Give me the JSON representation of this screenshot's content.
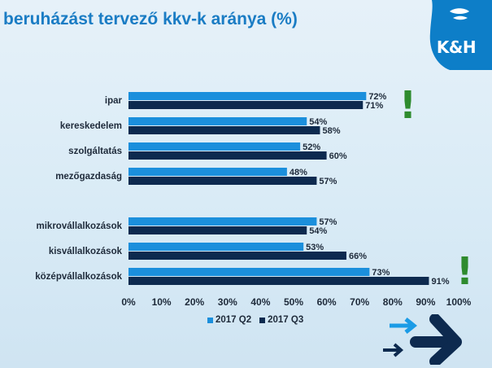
{
  "title": "beruházást tervező kkv-k aránya (%)",
  "logo": {
    "text": "K&H",
    "color": "#0d7ec8"
  },
  "colors": {
    "q2": "#1b8fdc",
    "q3": "#0d2a4f",
    "exclamation": "#2e8b2e"
  },
  "chart_data": {
    "type": "bar",
    "orientation": "horizontal",
    "title": "beruházást tervező kkv-k aránya (%)",
    "categories": [
      "ipar",
      "kereskedelem",
      "szolgáltatás",
      "mezőgazdaság",
      "mikrovállalkozások",
      "kisvállalkozások",
      "középvállalkozások"
    ],
    "group_gap_after": 3,
    "series": [
      {
        "name": "2017 Q2",
        "values": [
          72,
          54,
          52,
          48,
          57,
          53,
          73
        ],
        "labels": [
          "72%",
          "54%",
          "52%",
          "48%",
          "57%",
          "53%",
          "73%"
        ]
      },
      {
        "name": "2017 Q3",
        "values": [
          71,
          58,
          60,
          57,
          54,
          66,
          91
        ],
        "labels": [
          "71%",
          "58%",
          "60%",
          "57%",
          "54%",
          "66%",
          "91%"
        ]
      }
    ],
    "xlim": [
      0,
      100
    ],
    "xticks": [
      "0%",
      "10%",
      "20%",
      "30%",
      "40%",
      "50%",
      "60%",
      "70%",
      "80%",
      "90%",
      "100%"
    ],
    "legend": "bottom",
    "grid": false,
    "annotations": [
      {
        "text": "!",
        "category": "ipar"
      },
      {
        "text": "!",
        "category": "középvállalkozások"
      }
    ]
  }
}
